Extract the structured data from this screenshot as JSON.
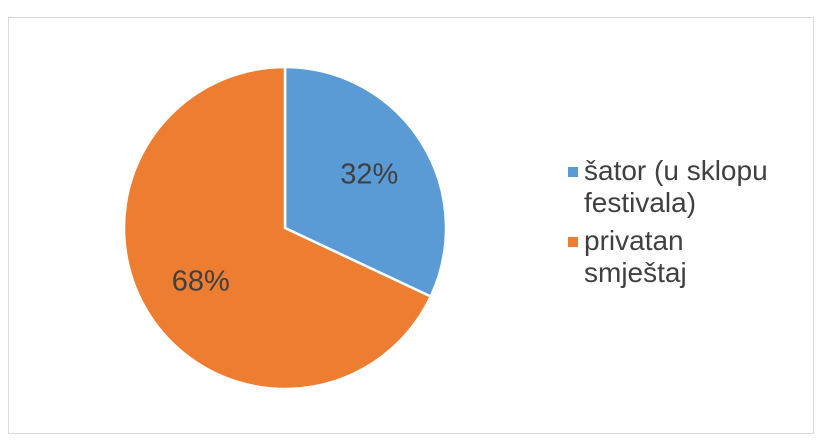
{
  "chart_data": {
    "type": "pie",
    "slices": [
      {
        "label": "šator (u sklopu festivala)",
        "legend_lines": [
          "šator (u sklopu",
          "festivala)"
        ],
        "value": 32,
        "display": "32%",
        "color": "#5b9bd5"
      },
      {
        "label": "privatan smještaj",
        "legend_lines": [
          "privatan",
          "smještaj"
        ],
        "value": 68,
        "display": "68%",
        "color": "#ed7d31"
      }
    ],
    "legend_position": "right",
    "start_angle": "12 o'clock, clockwise"
  }
}
